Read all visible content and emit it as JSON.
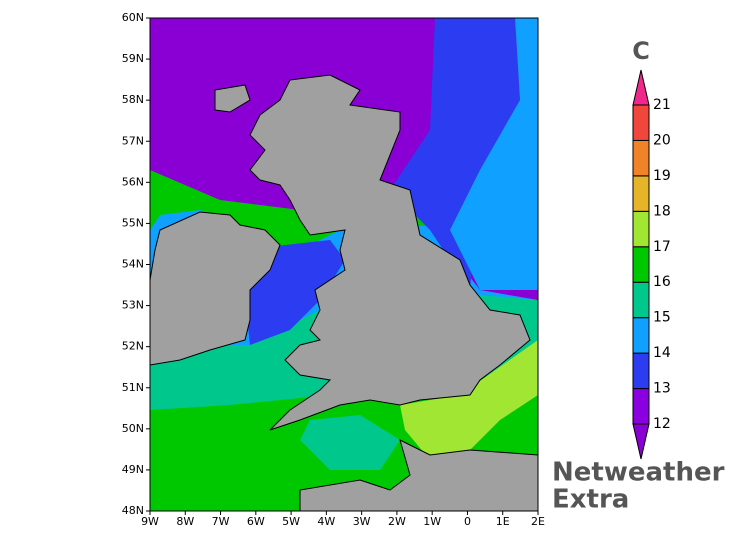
{
  "map": {
    "lat_labels": [
      "60N",
      "59N",
      "58N",
      "57N",
      "56N",
      "55N",
      "54N",
      "53N",
      "52N",
      "51N",
      "50N",
      "49N",
      "48N"
    ],
    "lon_labels": [
      "9W",
      "8W",
      "7W",
      "6W",
      "5W",
      "4W",
      "3W",
      "2W",
      "1W",
      "0",
      "1E",
      "2E"
    ]
  },
  "colorbar": {
    "unit": "C",
    "levels": [
      12,
      13,
      14,
      15,
      16,
      17,
      18,
      19,
      20,
      21
    ],
    "colors": [
      "#8a00d4",
      "#8a00e0",
      "#2c3cf0",
      "#10a0ff",
      "#00c88c",
      "#00c800",
      "#a0e632",
      "#e6b428",
      "#f08228",
      "#f0463c",
      "#f0288c"
    ]
  },
  "brand": {
    "line1": "Netweather",
    "line2": "Extra"
  }
}
